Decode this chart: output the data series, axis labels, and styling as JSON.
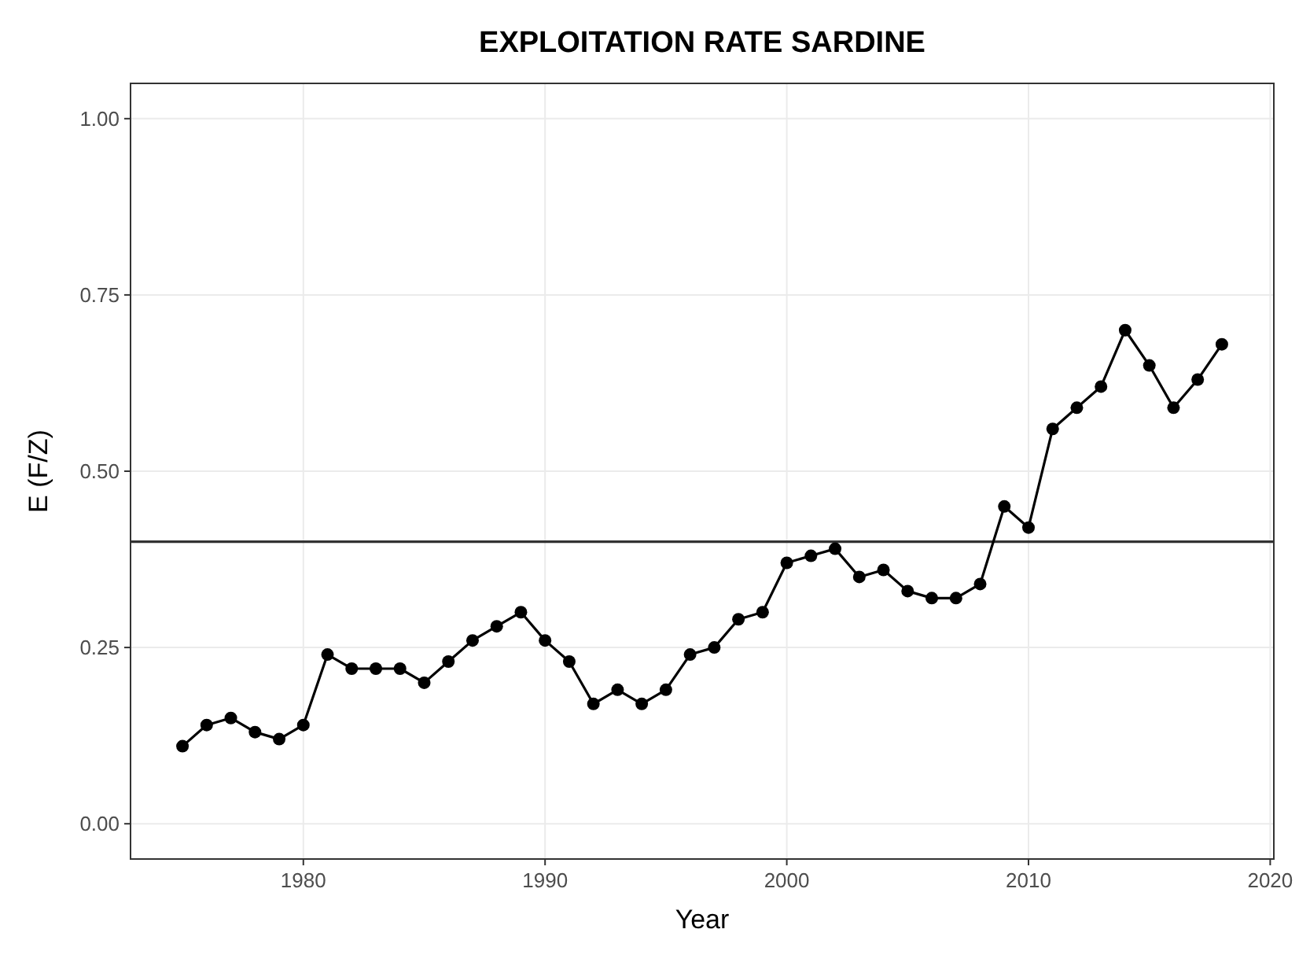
{
  "chart_data": {
    "type": "line",
    "title": "EXPLOITATION RATE SARDINE",
    "xlabel": "Year",
    "ylabel": "E (F/Z)",
    "x": [
      1975,
      1976,
      1977,
      1978,
      1979,
      1980,
      1981,
      1982,
      1983,
      1984,
      1985,
      1986,
      1987,
      1988,
      1989,
      1990,
      1991,
      1992,
      1993,
      1994,
      1995,
      1996,
      1997,
      1998,
      1999,
      2000,
      2001,
      2002,
      2003,
      2004,
      2005,
      2006,
      2007,
      2008,
      2009,
      2010,
      2011,
      2012,
      2013,
      2014,
      2015,
      2016,
      2017,
      2018
    ],
    "series": [
      {
        "color": "#000000",
        "values": [
          0.11,
          0.14,
          0.15,
          0.13,
          0.12,
          0.14,
          0.24,
          0.22,
          0.22,
          0.22,
          0.2,
          0.23,
          0.26,
          0.28,
          0.3,
          0.26,
          0.23,
          0.17,
          0.19,
          0.17,
          0.19,
          0.24,
          0.25,
          0.29,
          0.3,
          0.37,
          0.38,
          0.39,
          0.35,
          0.36,
          0.33,
          0.32,
          0.32,
          0.34,
          0.45,
          0.42,
          0.56,
          0.59,
          0.62,
          0.7,
          0.65,
          0.59,
          0.63,
          0.68
        ]
      }
    ],
    "xlim": [
      1972.85,
      2020.15
    ],
    "ylim": [
      -0.05,
      1.05
    ],
    "xticks": [
      1980,
      1990,
      2000,
      2010,
      2020
    ],
    "yticks": [
      {
        "value": 0,
        "label": "0.00"
      },
      {
        "value": 0.25,
        "label": "0.25"
      },
      {
        "value": 0.5,
        "label": "0.50"
      },
      {
        "value": 0.75,
        "label": "0.75"
      },
      {
        "value": 1,
        "label": "1.00"
      }
    ],
    "ref_lines": [
      {
        "axis": "y",
        "value": 0.4,
        "color": "#333333"
      }
    ],
    "grid": true,
    "marker": "circle",
    "line_style": "solid"
  }
}
